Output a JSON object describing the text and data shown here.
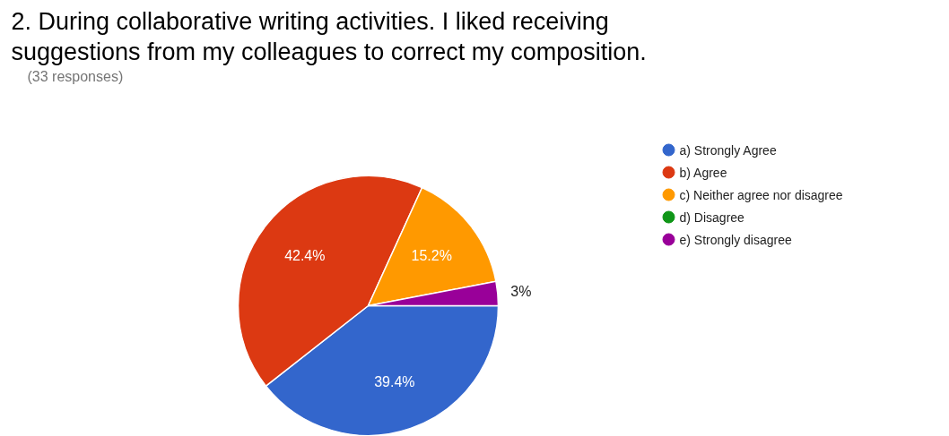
{
  "chart_data": {
    "type": "pie",
    "title": "2. During collaborative writing activities. I liked receiving suggestions from my colleagues to correct my composition.",
    "subtitle": "(33 responses)",
    "categories": [
      "a)  Strongly Agree",
      "b)  Agree",
      "c)  Neither agree nor disagree",
      "d)  Disagree",
      "e)  Strongly disagree"
    ],
    "values": [
      39.4,
      42.4,
      15.2,
      0,
      3
    ],
    "colors": [
      "#3366cc",
      "#dc3912",
      "#ff9900",
      "#109618",
      "#990099"
    ],
    "value_labels": [
      "39.4%",
      "42.4%",
      "15.2%",
      null,
      "3%"
    ],
    "legend": "right"
  }
}
